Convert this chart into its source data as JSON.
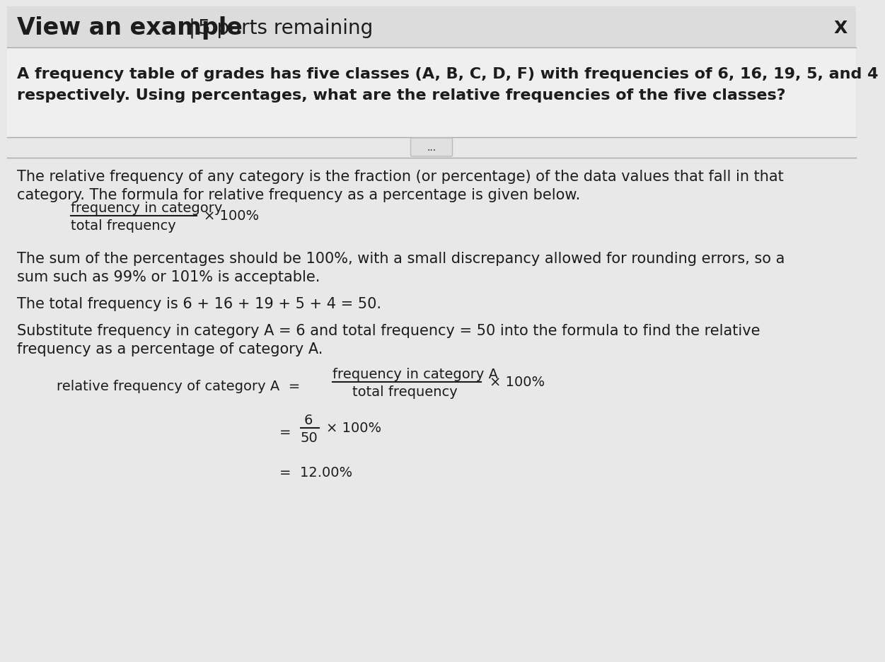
{
  "bg_color": "#e8e8e8",
  "header_bg": "#dcdcdc",
  "question_bg": "#ebebeb",
  "header_bold": "View an example",
  "header_sep": " | ",
  "header_normal": "5 parts remaining",
  "close_x": "X",
  "q_line1": "A frequency table of grades has five classes (A, B, C, D, F) with frequencies of 6, 16, 19, 5, and 4",
  "q_line2": "respectively. Using percentages, what are the relative frequencies of the five classes?",
  "dots": "...",
  "p1_line1": "The relative frequency of any category is the fraction (or percentage) of the data values that fall in that",
  "p1_line2": "category. The formula for relative frequency as a percentage is given below.",
  "formula_num": "frequency in category",
  "formula_den": "total frequency",
  "formula_x100": "× 100%",
  "p2_line1": "The sum of the percentages should be 100%, with a small discrepancy allowed for rounding errors, so a",
  "p2_line2": "sum such as 99% or 101% is acceptable.",
  "p3": "The total frequency is 6 + 16 + 19 + 5 + 4 = 50.",
  "p4_line1": "Substitute frequency in category A = 6 and total frequency = 50 into the formula to find the relative",
  "p4_line2": "frequency as a percentage of category A.",
  "rf_label": "relative frequency of category A  =",
  "rf_num": "frequency in category A",
  "rf_den": "total frequency",
  "rf_x100": "× 100%",
  "eq2_left": "=",
  "eq2_num": "6",
  "eq2_den": "50",
  "eq2_right": "× 100%",
  "eq3": "=  12.00%",
  "text_color": "#1c1c1c",
  "line_color": "#999999"
}
